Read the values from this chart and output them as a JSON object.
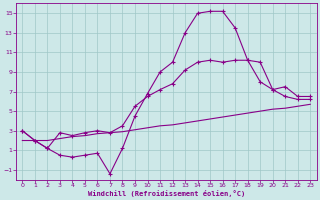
{
  "xlabel": "Windchill (Refroidissement éolien,°C)",
  "background_color": "#cde8e8",
  "grid_color": "#a0c8c8",
  "line_color": "#880088",
  "xlim": [
    -0.5,
    23.5
  ],
  "ylim": [
    -2,
    16
  ],
  "xticks": [
    0,
    1,
    2,
    3,
    4,
    5,
    6,
    7,
    8,
    9,
    10,
    11,
    12,
    13,
    14,
    15,
    16,
    17,
    18,
    19,
    20,
    21,
    22,
    23
  ],
  "yticks": [
    -1,
    1,
    3,
    5,
    7,
    9,
    11,
    13,
    15
  ],
  "line1_x": [
    0,
    1,
    2,
    3,
    4,
    5,
    6,
    7,
    8,
    9,
    10,
    11,
    12,
    13,
    14,
    15,
    16,
    17,
    18,
    19,
    20,
    21,
    22,
    23
  ],
  "line1_y": [
    3.0,
    2.0,
    1.2,
    0.5,
    0.3,
    0.5,
    0.7,
    -1.4,
    1.2,
    4.5,
    6.8,
    9.0,
    10.0,
    13.0,
    15.0,
    15.2,
    15.2,
    13.5,
    10.2,
    10.0,
    7.2,
    6.5,
    6.2,
    6.2
  ],
  "line2_x": [
    0,
    1,
    2,
    3,
    4,
    5,
    6,
    7,
    8,
    9,
    10,
    11,
    12,
    13,
    14,
    15,
    16,
    17,
    18,
    19,
    20,
    21,
    22,
    23
  ],
  "line2_y": [
    3.0,
    2.0,
    1.2,
    2.8,
    2.5,
    2.8,
    3.0,
    2.8,
    3.5,
    5.5,
    6.5,
    7.2,
    7.8,
    9.2,
    10.0,
    10.2,
    10.0,
    10.2,
    10.2,
    8.0,
    7.2,
    7.5,
    6.5,
    6.5
  ],
  "line3_x": [
    0,
    1,
    2,
    3,
    4,
    5,
    6,
    7,
    8,
    9,
    10,
    11,
    12,
    13,
    14,
    15,
    16,
    17,
    18,
    19,
    20,
    21,
    22,
    23
  ],
  "line3_y": [
    2.0,
    2.0,
    2.0,
    2.2,
    2.4,
    2.5,
    2.7,
    2.8,
    2.9,
    3.1,
    3.3,
    3.5,
    3.6,
    3.8,
    4.0,
    4.2,
    4.4,
    4.6,
    4.8,
    5.0,
    5.2,
    5.3,
    5.5,
    5.7
  ]
}
